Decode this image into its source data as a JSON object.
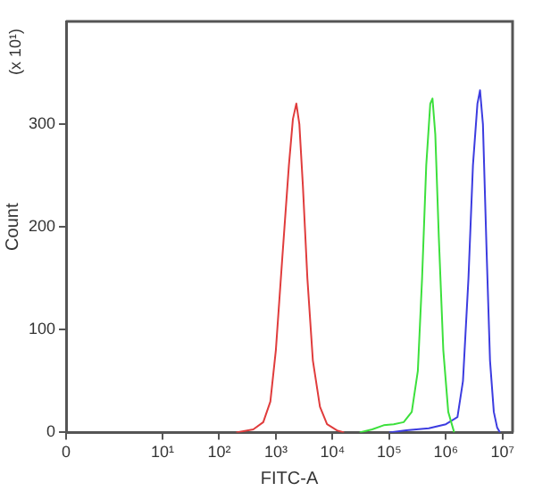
{
  "chart_data": {
    "type": "line",
    "xlabel": "FITC-A",
    "ylabel": "Count",
    "annotations": [
      "(x 10¹)"
    ],
    "log": "x",
    "grid": false,
    "legend": false,
    "marker": "none",
    "xlim": [
      0,
      15000000
    ],
    "xticks": [
      {
        "value": 0,
        "label": "0"
      },
      {
        "value": 10,
        "label": "10¹"
      },
      {
        "value": 100,
        "label": "10²"
      },
      {
        "value": 1000,
        "label": "10³"
      },
      {
        "value": 10000,
        "label": "10⁴"
      },
      {
        "value": 100000,
        "label": "10⁵"
      },
      {
        "value": 1000000,
        "label": "10⁶"
      },
      {
        "value": 10000000,
        "label": "10⁷"
      }
    ],
    "ylim": [
      0,
      400
    ],
    "yticks": [
      0,
      100,
      200,
      300
    ],
    "series": [
      {
        "color": "#e03c3c",
        "x": [
          200,
          400,
          600,
          800,
          1000,
          1300,
          1700,
          2000,
          2300,
          2600,
          3000,
          3600,
          4500,
          6000,
          8000,
          12000,
          16000
        ],
        "values": [
          0,
          3,
          10,
          30,
          80,
          170,
          260,
          305,
          320,
          300,
          240,
          150,
          70,
          25,
          8,
          2,
          0
        ]
      },
      {
        "color": "#3ce03c",
        "x": [
          30000,
          50000,
          80000,
          120000,
          180000,
          250000,
          320000,
          380000,
          450000,
          530000,
          580000,
          650000,
          750000,
          900000,
          1100000,
          1400000
        ],
        "values": [
          0,
          3,
          7,
          8,
          10,
          20,
          60,
          150,
          260,
          320,
          325,
          290,
          190,
          80,
          20,
          0
        ]
      },
      {
        "color": "#3c3ce0",
        "x": [
          100000,
          200000,
          500000,
          1000000,
          1600000,
          2000000,
          2500000,
          3000000,
          3600000,
          4000000,
          4500000,
          5200000,
          6000000,
          7000000,
          8000000,
          9000000
        ],
        "values": [
          0,
          2,
          4,
          8,
          15,
          50,
          150,
          260,
          320,
          333,
          300,
          180,
          70,
          20,
          5,
          0
        ]
      }
    ]
  }
}
